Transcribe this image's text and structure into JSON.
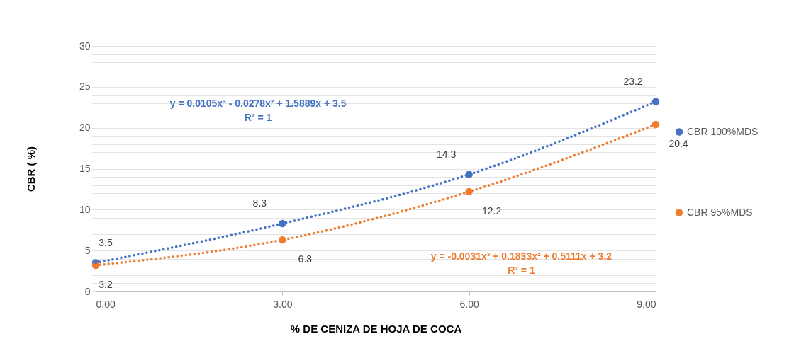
{
  "chart_data": {
    "type": "scatter",
    "xlabel": "% DE CENIZA DE HOJA DE COCA",
    "ylabel": "CBR ( %)",
    "x": [
      0,
      3,
      6,
      9
    ],
    "xlim": [
      0,
      9
    ],
    "xticks": [
      {
        "value": 0,
        "label": "0.00"
      },
      {
        "value": 3,
        "label": "3.00"
      },
      {
        "value": 6,
        "label": "6.00"
      },
      {
        "value": 9,
        "label": "9.00"
      }
    ],
    "ylim": [
      0,
      30
    ],
    "yticks": [
      0,
      {
        "value": 1,
        "label": null
      },
      {
        "value": 2,
        "label": null
      },
      {
        "value": 3,
        "label": null
      },
      {
        "value": 4,
        "label": null
      },
      5,
      {
        "value": 6,
        "label": null
      },
      {
        "value": 7,
        "label": null
      },
      {
        "value": 8,
        "label": null
      },
      {
        "value": 9,
        "label": null
      },
      10,
      {
        "value": 11,
        "label": null
      },
      {
        "value": 12,
        "label": null
      },
      {
        "value": 13,
        "label": null
      },
      {
        "value": 14,
        "label": null
      },
      15,
      {
        "value": 16,
        "label": null
      },
      {
        "value": 17,
        "label": null
      },
      {
        "value": 18,
        "label": null
      },
      {
        "value": 19,
        "label": null
      },
      20,
      {
        "value": 21,
        "label": null
      },
      {
        "value": 22,
        "label": null
      },
      {
        "value": 23,
        "label": null
      },
      {
        "value": 24,
        "label": null
      },
      25,
      {
        "value": 26,
        "label": null
      },
      {
        "value": 27,
        "label": null
      },
      {
        "value": 28,
        "label": null
      },
      {
        "value": 29,
        "label": null
      },
      30
    ],
    "grid": "y",
    "legend": "right",
    "marker": "circle",
    "annotations": [
      "y = 0.0105x³ - 0.0278x² + 1.5889x + 3.5",
      "R² = 1",
      "y = -0.0031x³ + 0.1833x² + 0.5111x + 3.2",
      "R² = 1"
    ],
    "series": [
      {
        "name": "CBR 100%MDS",
        "color": "#4472c4",
        "values": [
          3.5,
          8.3,
          14.3,
          23.2
        ],
        "value_labels": [
          "3.5",
          "8.3",
          "14.3",
          "23.2"
        ]
      },
      {
        "name": "CBR 95%MDS",
        "color": "#ed7d31",
        "values": [
          3.2,
          6.3,
          12.2,
          20.4
        ],
        "value_labels": [
          "3.2",
          "6.3",
          "12.2",
          "20.4"
        ]
      },
      {
        "type": "line",
        "color": "#4472c4",
        "line_style": "dotted",
        "marker": "none",
        "x": [
          0,
          3,
          6,
          9
        ],
        "values": [
          3.5,
          8.3,
          14.3,
          23.2
        ]
      },
      {
        "type": "line",
        "color": "#ed7d31",
        "line_style": "dotted",
        "marker": "none",
        "x": [
          0,
          3,
          6,
          9
        ],
        "values": [
          3.2,
          6.3,
          12.2,
          20.4
        ]
      }
    ]
  }
}
